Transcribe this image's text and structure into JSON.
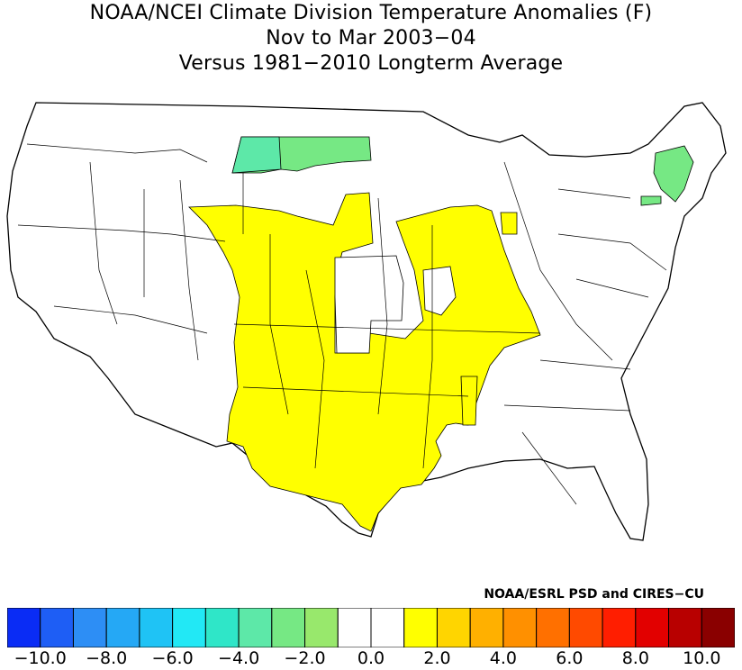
{
  "title": {
    "line1": "NOAA/NCEI Climate Division Temperature Anomalies (F)",
    "line2": "Nov to Mar 2003−04",
    "line3": "Versus 1981−2010 Longterm Average"
  },
  "credit": "NOAA/ESRL PSD and CIRES−CU",
  "legend": {
    "colors": [
      "#0a2cf5",
      "#1e5ef5",
      "#2d8ef5",
      "#25a8f5",
      "#1fc3f5",
      "#22e8f5",
      "#2fe6c8",
      "#5de8a8",
      "#76e884",
      "#98e86c",
      "#ffffff",
      "#ffffff",
      "#ffff00",
      "#ffd500",
      "#ffb000",
      "#ff9000",
      "#ff7000",
      "#ff4a00",
      "#ff1e00",
      "#e20000",
      "#b80000",
      "#8a0000"
    ],
    "tick_labels": [
      "−10.0",
      "−8.0",
      "−6.0",
      "−4.0",
      "−2.0",
      "0.0",
      "2.0",
      "4.0",
      "6.0",
      "8.0",
      "10.0"
    ],
    "tick_values": [
      -10,
      -8,
      -6,
      -4,
      -2,
      0,
      2,
      4,
      6,
      8,
      10
    ],
    "range": [
      -11,
      11
    ]
  },
  "map_colors": {
    "neutral": "#ffffff",
    "warm_1_2": "#ffff00",
    "cool_neg1_neg2": "#76e884",
    "cool_neg2_neg3": "#5de8a8",
    "line": "#000000"
  }
}
